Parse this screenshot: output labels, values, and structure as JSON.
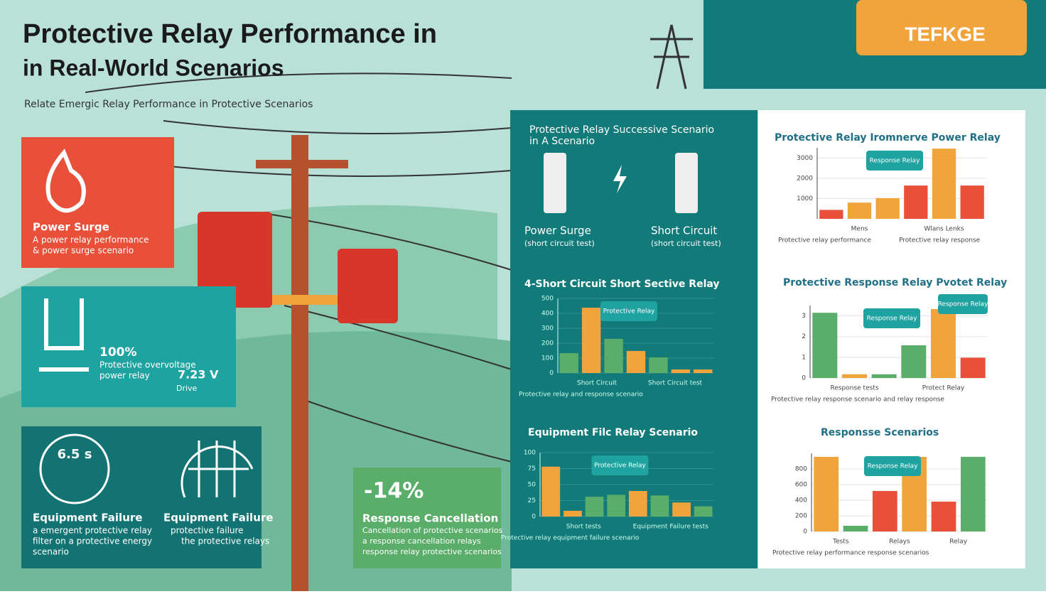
{
  "header": {
    "title_line1": "Protective Relay Performance in",
    "title_line2": "in Real-World Scenarios",
    "subtitle": "Relate Emergic Relay Performance in Protective Scenarios"
  },
  "logo": "TEFKGE",
  "cards": [
    {
      "title": "Power Surge",
      "text1": "A power relay performance",
      "text2": "& power surge scenario"
    },
    {
      "value": "100%",
      "text1": "Protective overvoltage",
      "text2": "power relay",
      "value2": "7.23 V",
      "label2": "Drive"
    },
    {
      "gauge": "6.5 s",
      "title": "Equipment Failure",
      "text1": "a emergent protective relay",
      "text2": "filter on a protective energy",
      "text3": "scenario",
      "title_b": "Equipment Failure",
      "text_b1": "protective failure",
      "text_b2": "the protective relays"
    },
    {
      "value": "-14%",
      "title": "Response Cancellation",
      "text1": "Cancellation of protective scenarios",
      "text2": "a response cancellation relays",
      "text3": "response relay protective scenarios"
    }
  ],
  "scenario_panel": {
    "title_line1": "Protective Relay Successive Scenario",
    "title_line2": "in A Scenario",
    "left_title": "Power Surge",
    "left_text": "(short circuit test)",
    "right_title": "Short Circuit",
    "right_text": "(short circuit test)"
  },
  "charts": [
    {
      "title": "Protective Relay Iromnerve Power Relay",
      "callout": "Response Relay",
      "ylim": [
        0,
        3500
      ],
      "yticks": [
        1000,
        2000,
        3000
      ],
      "values": [
        440,
        800,
        1020,
        1640,
        3460,
        1640
      ],
      "colors": [
        "#e8503a",
        "#f1a43c",
        "#f1a43c",
        "#e8503a",
        "#f1a43c",
        "#e8503a"
      ],
      "xlabels": [
        "Mens",
        "Wlans Lenks"
      ],
      "legend": [
        "Protective relay performance",
        "Protective relay response"
      ]
    },
    {
      "title": "4-Short Circuit Short Sective Relay",
      "callout": "Protective Relay",
      "ylim": [
        0,
        500
      ],
      "yticks": [
        0,
        100,
        200,
        300,
        400,
        500
      ],
      "values": [
        133,
        438,
        229,
        148,
        105,
        24,
        24
      ],
      "colors": [
        "#5aae6a",
        "#f1a43c",
        "#5aae6a",
        "#f1a43c",
        "#5aae6a",
        "#f1a43c",
        "#f1a43c"
      ],
      "xlabels": [
        "Short Circuit",
        "Short Circuit test"
      ],
      "legend": [
        "Protective relay and response scenario"
      ]
    },
    {
      "title": "Protective Response Relay Pvotet Relay",
      "callout": "Response Relay",
      "callout2": "Response Relay",
      "ylim": [
        0,
        3.5
      ],
      "yticks": [
        0,
        1,
        2,
        3
      ],
      "values": [
        3.15,
        0.18,
        0.18,
        1.58,
        3.33,
        0.98
      ],
      "colors": [
        "#5aae6a",
        "#f1a43c",
        "#5aae6a",
        "#5aae6a",
        "#f1a43c",
        "#e8503a"
      ],
      "xlabels": [
        "Response tests",
        "Protect Relay"
      ],
      "legend": [
        "Protective relay response scenario and relay response"
      ]
    },
    {
      "title": "Equipment Filc Relay Scenario",
      "callout": "Protective Relay",
      "ylim": [
        0,
        100
      ],
      "yticks": [
        0,
        25,
        50,
        75,
        100
      ],
      "values": [
        78,
        9,
        31,
        34,
        40,
        33,
        22,
        16
      ],
      "colors": [
        "#f1a43c",
        "#f1a43c",
        "#5aae6a",
        "#5aae6a",
        "#f1a43c",
        "#5aae6a",
        "#f1a43c",
        "#5aae6a"
      ],
      "xlabels": [
        "Short tests",
        "Equipment Failure tests"
      ],
      "legend": [
        "Protective relay equipment failure scenario"
      ]
    },
    {
      "title": "Responsse Scenarios",
      "callout": "Response Relay",
      "ylim": [
        0,
        1000
      ],
      "yticks": [
        0,
        200,
        400,
        600,
        800
      ],
      "values": [
        955,
        73,
        518,
        955,
        382,
        955
      ],
      "colors": [
        "#f1a43c",
        "#5aae6a",
        "#e8503a",
        "#f1a43c",
        "#e8503a",
        "#5aae6a"
      ],
      "xlabels": [
        "Tests",
        "Relays",
        "Relay"
      ],
      "legend": [
        "Protective relay performance response scenarios"
      ]
    }
  ]
}
